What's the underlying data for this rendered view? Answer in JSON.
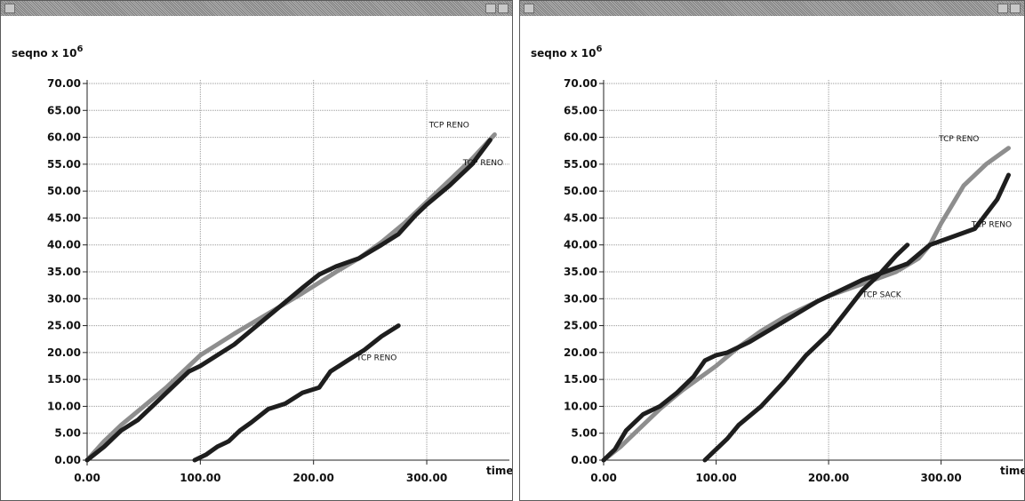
{
  "windows": [
    {
      "title": "",
      "buttons": [
        "close-button",
        "menu-button",
        "minimize-button"
      ]
    },
    {
      "title": "",
      "buttons": [
        "close-button",
        "menu-button",
        "minimize-button"
      ]
    }
  ],
  "chart_data": [
    {
      "type": "line",
      "ylabel": "seqno x 10",
      "ylabel_exponent": "6",
      "xlabel": "time",
      "xlim": [
        0,
        373
      ],
      "ylim": [
        0,
        70
      ],
      "x_ticks": [
        "0.00",
        "100.00",
        "200.00",
        "300.00"
      ],
      "x_tick_values": [
        0,
        100,
        200,
        300
      ],
      "y_ticks": [
        "0.00",
        "5.00",
        "10.00",
        "15.00",
        "20.00",
        "25.00",
        "30.00",
        "35.00",
        "40.00",
        "45.00",
        "50.00",
        "55.00",
        "60.00",
        "65.00",
        "70.00"
      ],
      "y_tick_values": [
        0,
        5,
        10,
        15,
        20,
        25,
        30,
        35,
        40,
        45,
        50,
        55,
        60,
        65,
        70
      ],
      "grid": true,
      "series": [
        {
          "name": "TCP RENO",
          "color": "#8e8e8e",
          "x": [
            0,
            15,
            30,
            50,
            70,
            90,
            100,
            115,
            130,
            150,
            170,
            190,
            205,
            220,
            240,
            260,
            280,
            300,
            320,
            340,
            360
          ],
          "y": [
            0,
            3.5,
            6.5,
            10,
            13.5,
            17.5,
            19.5,
            21.5,
            23.5,
            26,
            28.5,
            31,
            33,
            35,
            37.5,
            40.5,
            44,
            48,
            52,
            56,
            60.5
          ]
        },
        {
          "name": "TCP RENO",
          "color": "#1e1e1e",
          "x": [
            0,
            15,
            30,
            45,
            60,
            75,
            90,
            100,
            115,
            130,
            150,
            170,
            190,
            205,
            220,
            240,
            260,
            275,
            290,
            300,
            320,
            340,
            356
          ],
          "y": [
            0,
            2.5,
            5.5,
            7.5,
            10.5,
            13.5,
            16.5,
            17.5,
            19.5,
            21.5,
            25,
            28.5,
            32,
            34.5,
            36,
            37.5,
            40,
            42,
            45.5,
            47.5,
            51,
            55,
            59.5
          ]
        },
        {
          "name": "TCP RENO",
          "color": "#1e1e1e",
          "x": [
            95,
            105,
            115,
            125,
            135,
            145,
            160,
            175,
            190,
            205,
            215,
            230,
            245,
            260,
            275
          ],
          "y": [
            0,
            1,
            2.5,
            3.5,
            5.5,
            7,
            9.5,
            10.5,
            12.5,
            13.5,
            16.5,
            18.5,
            20.5,
            23,
            25
          ]
        }
      ],
      "annotations": [
        {
          "text": "TCP RENO",
          "x": 302,
          "y": 61.8
        },
        {
          "text": "TCP RENO",
          "x": 332,
          "y": 54.8
        },
        {
          "text": "TCP RENO",
          "x": 238,
          "y": 18.6
        }
      ]
    },
    {
      "type": "line",
      "ylabel": "seqno x 10",
      "ylabel_exponent": "6",
      "xlabel": "time",
      "xlim": [
        0,
        373
      ],
      "ylim": [
        0,
        70
      ],
      "x_ticks": [
        "0.00",
        "100.00",
        "200.00",
        "300.00"
      ],
      "x_tick_values": [
        0,
        100,
        200,
        300
      ],
      "y_ticks": [
        "0.00",
        "5.00",
        "10.00",
        "15.00",
        "20.00",
        "25.00",
        "30.00",
        "35.00",
        "40.00",
        "45.00",
        "50.00",
        "55.00",
        "60.00",
        "65.00",
        "70.00"
      ],
      "y_tick_values": [
        0,
        5,
        10,
        15,
        20,
        25,
        30,
        35,
        40,
        45,
        50,
        55,
        60,
        65,
        70
      ],
      "grid": true,
      "series": [
        {
          "name": "TCP RENO",
          "color": "#8e8e8e",
          "x": [
            0,
            15,
            30,
            50,
            70,
            90,
            100,
            120,
            140,
            160,
            180,
            200,
            220,
            240,
            260,
            280,
            290,
            300,
            310,
            320,
            340,
            360
          ],
          "y": [
            0,
            2.5,
            5.5,
            9.5,
            13,
            16,
            17.5,
            21,
            24,
            26.5,
            28.5,
            30.5,
            32,
            33.5,
            35,
            37.5,
            40,
            44,
            47.5,
            51,
            55,
            58
          ]
        },
        {
          "name": "TCP RENO",
          "color": "#1e1e1e",
          "x": [
            0,
            10,
            20,
            35,
            50,
            65,
            80,
            90,
            100,
            110,
            130,
            150,
            170,
            190,
            210,
            230,
            250,
            270,
            290,
            310,
            330,
            350,
            360
          ],
          "y": [
            0,
            2,
            5.5,
            8.5,
            10,
            12.5,
            15.5,
            18.5,
            19.5,
            20,
            22,
            24.5,
            27,
            29.5,
            31.5,
            33.5,
            35,
            36.5,
            40,
            41.5,
            43,
            48.5,
            53
          ]
        },
        {
          "name": "TCP SACK",
          "color": "#1e1e1e",
          "x": [
            90,
            100,
            110,
            120,
            140,
            160,
            180,
            200,
            215,
            230,
            245,
            260,
            270
          ],
          "y": [
            0,
            2,
            4,
            6.5,
            10,
            14.5,
            19.5,
            23.5,
            27.5,
            31.5,
            34.5,
            38,
            40
          ]
        }
      ],
      "annotations": [
        {
          "text": "TCP RENO",
          "x": 298,
          "y": 59.3
        },
        {
          "text": "TCP RENO",
          "x": 327,
          "y": 43.3
        },
        {
          "text": "TCP SACK",
          "x": 230,
          "y": 30.3
        }
      ]
    }
  ]
}
